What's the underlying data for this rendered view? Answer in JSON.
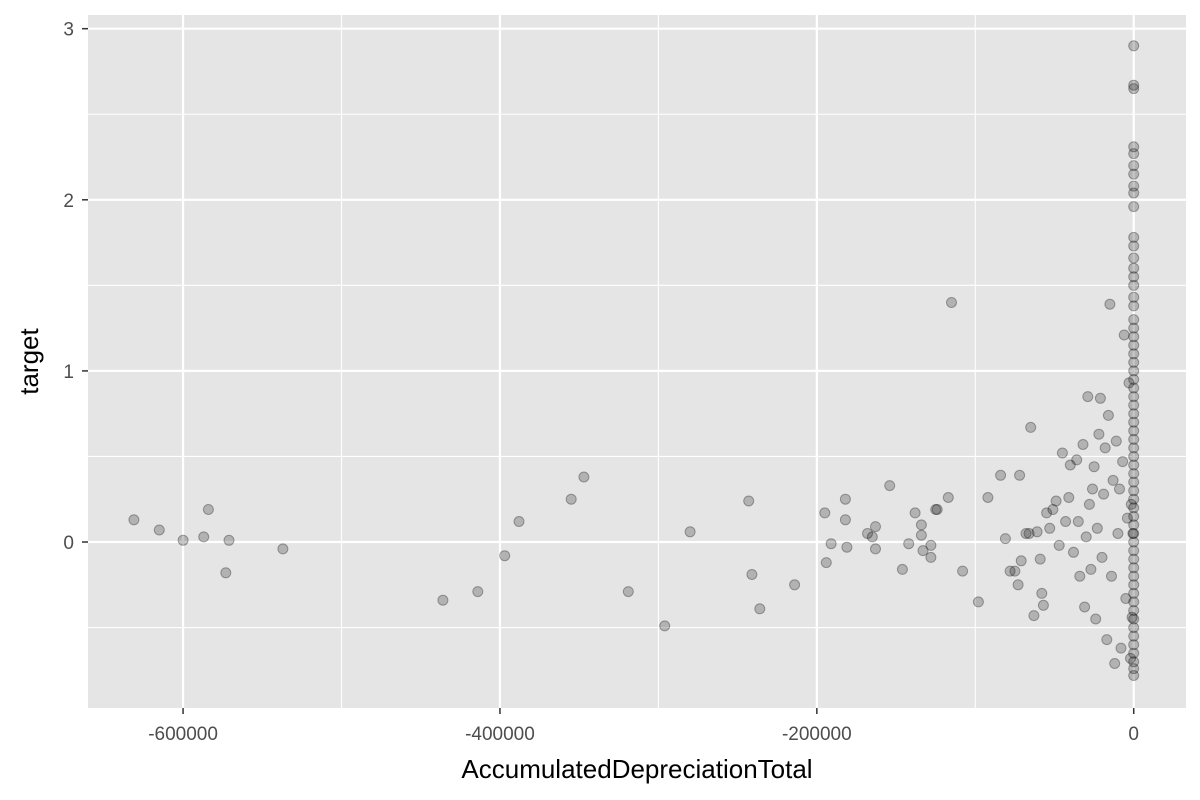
{
  "chart_data": {
    "type": "scatter",
    "title": "",
    "xlabel": "AccumulatedDepreciationTotal",
    "ylabel": "target",
    "xlim": [
      -660000,
      33000
    ],
    "ylim": [
      -0.97,
      3.08
    ],
    "x_ticks": [
      -600000,
      -400000,
      -200000,
      0
    ],
    "x_tick_labels": [
      "-600000",
      "-400000",
      "-200000",
      "0"
    ],
    "y_ticks": [
      0,
      1,
      2,
      3
    ],
    "y_tick_labels": [
      "0",
      "1",
      "2",
      "3"
    ],
    "grid": true,
    "panel_background": "#e5e5e5",
    "gridline_color": "#ffffff",
    "point_color": "#000000",
    "point_opacity": 0.22,
    "legend": "none",
    "points": [
      [
        -631000,
        0.13
      ],
      [
        -615000,
        0.07
      ],
      [
        -600000,
        0.01
      ],
      [
        -587000,
        0.03
      ],
      [
        -584000,
        0.19
      ],
      [
        -573000,
        -0.18
      ],
      [
        -571000,
        0.01
      ],
      [
        -537000,
        -0.04
      ],
      [
        -436000,
        -0.34
      ],
      [
        -414000,
        -0.29
      ],
      [
        -397000,
        -0.08
      ],
      [
        -388000,
        0.12
      ],
      [
        -355000,
        0.25
      ],
      [
        -347000,
        0.38
      ],
      [
        -319000,
        -0.29
      ],
      [
        -296000,
        -0.49
      ],
      [
        -280000,
        0.06
      ],
      [
        -243000,
        0.24
      ],
      [
        -241000,
        -0.19
      ],
      [
        -236000,
        -0.39
      ],
      [
        -214000,
        -0.25
      ],
      [
        -195000,
        0.17
      ],
      [
        -194000,
        -0.12
      ],
      [
        -191000,
        -0.01
      ],
      [
        -182000,
        0.25
      ],
      [
        -182000,
        0.13
      ],
      [
        -181000,
        -0.03
      ],
      [
        -168000,
        0.05
      ],
      [
        -165000,
        0.03
      ],
      [
        -163000,
        0.09
      ],
      [
        -163000,
        -0.04
      ],
      [
        -154000,
        0.33
      ],
      [
        -146000,
        -0.16
      ],
      [
        -142000,
        -0.01
      ],
      [
        -138000,
        0.17
      ],
      [
        -134000,
        0.1
      ],
      [
        -134000,
        0.04
      ],
      [
        -133000,
        -0.05
      ],
      [
        -128000,
        -0.02
      ],
      [
        -128000,
        -0.09
      ],
      [
        -125000,
        0.19
      ],
      [
        -124000,
        0.19
      ],
      [
        -117000,
        0.26
      ],
      [
        -115000,
        1.4
      ],
      [
        -108000,
        -0.17
      ],
      [
        -98000,
        -0.35
      ],
      [
        -92000,
        0.26
      ],
      [
        -84000,
        0.39
      ],
      [
        -81000,
        0.02
      ],
      [
        -78000,
        -0.17
      ],
      [
        -75000,
        -0.17
      ],
      [
        -73000,
        -0.25
      ],
      [
        -72000,
        0.39
      ],
      [
        -71000,
        -0.11
      ],
      [
        -68000,
        0.05
      ],
      [
        -66000,
        0.05
      ],
      [
        -65000,
        0.67
      ],
      [
        -63000,
        -0.43
      ],
      [
        -61000,
        0.06
      ],
      [
        -59000,
        -0.1
      ],
      [
        -58000,
        -0.3
      ],
      [
        -57000,
        -0.37
      ],
      [
        -55000,
        0.17
      ],
      [
        -53000,
        0.08
      ],
      [
        -51000,
        0.19
      ],
      [
        -49000,
        0.24
      ],
      [
        -47000,
        -0.02
      ],
      [
        -45000,
        0.52
      ],
      [
        -43000,
        0.12
      ],
      [
        -41000,
        0.26
      ],
      [
        -40000,
        0.45
      ],
      [
        -38000,
        -0.06
      ],
      [
        -36000,
        0.48
      ],
      [
        -35000,
        0.12
      ],
      [
        -34000,
        -0.2
      ],
      [
        -32000,
        0.57
      ],
      [
        -31000,
        -0.38
      ],
      [
        -30000,
        0.03
      ],
      [
        -29000,
        0.85
      ],
      [
        -28000,
        0.22
      ],
      [
        -27000,
        -0.16
      ],
      [
        -26000,
        0.31
      ],
      [
        -25000,
        0.44
      ],
      [
        -24000,
        -0.45
      ],
      [
        -23000,
        0.08
      ],
      [
        -22000,
        0.63
      ],
      [
        -21000,
        0.84
      ],
      [
        -20000,
        -0.09
      ],
      [
        -19000,
        0.28
      ],
      [
        -18000,
        0.55
      ],
      [
        -17000,
        -0.57
      ],
      [
        -16000,
        0.74
      ],
      [
        -15000,
        1.39
      ],
      [
        -14000,
        -0.2
      ],
      [
        -13000,
        0.36
      ],
      [
        -12000,
        -0.71
      ],
      [
        -11000,
        0.59
      ],
      [
        -10000,
        0.05
      ],
      [
        -9000,
        0.31
      ],
      [
        -8000,
        -0.62
      ],
      [
        -7000,
        0.47
      ],
      [
        -6000,
        1.21
      ],
      [
        -5000,
        -0.33
      ],
      [
        -4000,
        0.14
      ],
      [
        -3000,
        0.93
      ],
      [
        -2000,
        -0.68
      ],
      [
        -1500,
        0.22
      ],
      [
        -1000,
        -0.44
      ],
      [
        -500,
        0.05
      ],
      [
        0,
        2.9
      ],
      [
        0,
        2.67
      ],
      [
        0,
        2.65
      ],
      [
        0,
        2.31
      ],
      [
        0,
        2.27
      ],
      [
        0,
        2.2
      ],
      [
        0,
        2.15
      ],
      [
        0,
        2.08
      ],
      [
        0,
        2.04
      ],
      [
        0,
        1.96
      ],
      [
        0,
        1.78
      ],
      [
        0,
        1.73
      ],
      [
        0,
        1.66
      ],
      [
        0,
        1.6
      ],
      [
        0,
        1.55
      ],
      [
        0,
        1.5
      ],
      [
        0,
        1.43
      ],
      [
        0,
        1.38
      ],
      [
        0,
        1.3
      ],
      [
        0,
        1.25
      ],
      [
        0,
        1.2
      ],
      [
        0,
        1.15
      ],
      [
        0,
        1.1
      ],
      [
        0,
        1.05
      ],
      [
        0,
        1.0
      ],
      [
        0,
        0.95
      ],
      [
        0,
        0.9
      ],
      [
        0,
        0.85
      ],
      [
        0,
        0.8
      ],
      [
        0,
        0.75
      ],
      [
        0,
        0.7
      ],
      [
        0,
        0.65
      ],
      [
        0,
        0.6
      ],
      [
        0,
        0.55
      ],
      [
        0,
        0.5
      ],
      [
        0,
        0.45
      ],
      [
        0,
        0.4
      ],
      [
        0,
        0.35
      ],
      [
        0,
        0.3
      ],
      [
        0,
        0.25
      ],
      [
        0,
        0.2
      ],
      [
        0,
        0.15
      ],
      [
        0,
        0.1
      ],
      [
        0,
        0.05
      ],
      [
        0,
        0.0
      ],
      [
        0,
        -0.05
      ],
      [
        0,
        -0.1
      ],
      [
        0,
        -0.15
      ],
      [
        0,
        -0.2
      ],
      [
        0,
        -0.25
      ],
      [
        0,
        -0.3
      ],
      [
        0,
        -0.35
      ],
      [
        0,
        -0.4
      ],
      [
        0,
        -0.45
      ],
      [
        0,
        -0.5
      ],
      [
        0,
        -0.55
      ],
      [
        0,
        -0.6
      ],
      [
        0,
        -0.65
      ],
      [
        0,
        -0.7
      ],
      [
        0,
        -0.74
      ],
      [
        0,
        -0.78
      ]
    ]
  }
}
